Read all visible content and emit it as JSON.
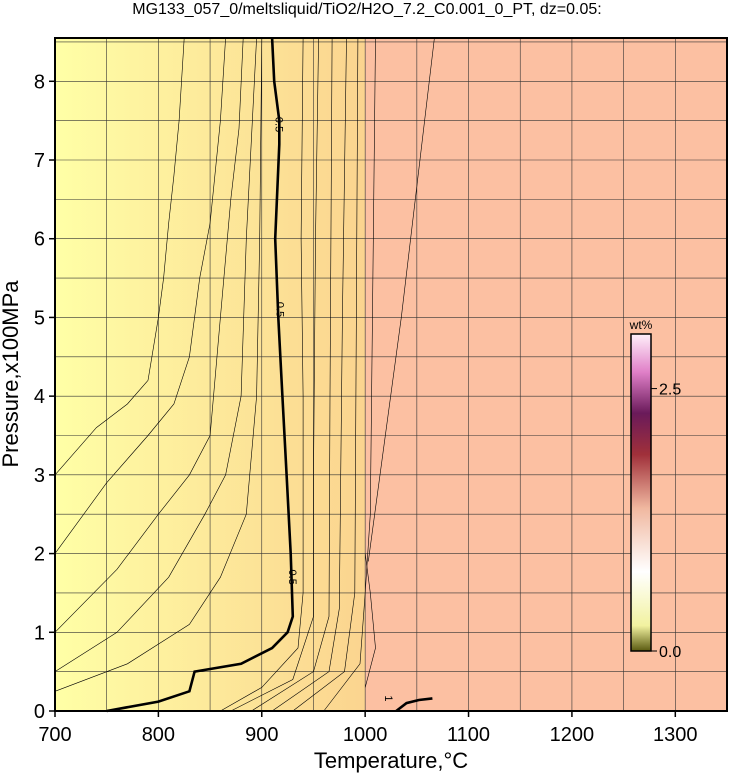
{
  "chart_data": {
    "type": "contour",
    "title": "MG133_057_0/meltsliquid/TiO2/H2O_7.2_C0.001_0_PT, dz=0.05:",
    "x_label": "Temperature,°C",
    "y_label": "Pressure,x100MPa",
    "xlim": [
      700,
      1350
    ],
    "ylim": [
      0,
      8.55
    ],
    "xticks": [
      700,
      800,
      900,
      1000,
      1100,
      1200,
      1300
    ],
    "yticks": [
      0,
      1,
      2,
      3,
      4,
      5,
      6,
      7,
      8
    ],
    "xgrid": [
      700,
      750,
      800,
      850,
      900,
      950,
      1000,
      1050,
      1100,
      1150,
      1200,
      1250,
      1300,
      1350
    ],
    "ygrid": [
      0,
      0.5,
      1,
      1.5,
      2,
      2.5,
      3,
      3.5,
      4,
      4.5,
      5,
      5.5,
      6,
      6.5,
      7,
      7.5,
      8,
      8.5
    ],
    "grid": true,
    "colorbar": {
      "label": "wt%",
      "clim": [
        0,
        3.02
      ],
      "ticks": [
        {
          "value": 0,
          "label": "0.0"
        },
        {
          "value": 2.5,
          "label": "2.5"
        }
      ]
    },
    "contours": [
      {
        "level": 0.5,
        "bold": true,
        "x": [
          750,
          800,
          830,
          835,
          880,
          910,
          925,
          930,
          928,
          924,
          920,
          916,
          913,
          917,
          917,
          912,
          910
        ],
        "y": [
          0,
          0.12,
          0.25,
          0.5,
          0.6,
          0.8,
          1.0,
          1.2,
          2.0,
          3.0,
          4.0,
          5.0,
          6.0,
          7.2,
          7.5,
          8.0,
          8.55
        ],
        "labels": [
          {
            "x": 917,
            "y": 5.1
          },
          {
            "x": 929,
            "y": 1.7
          },
          {
            "x": 916,
            "y": 7.45
          }
        ]
      },
      {
        "level": 1,
        "bold": true,
        "x": [
          1030,
          1040,
          1052,
          1065
        ],
        "y": [
          0,
          0.1,
          0.14,
          0.16
        ],
        "labels": [
          {
            "x": 1022,
            "y": 0.16
          }
        ]
      },
      {
        "x": [
          700,
          740,
          770,
          790,
          800,
          805,
          810,
          815,
          820,
          825
        ],
        "y": [
          3.0,
          3.6,
          3.9,
          4.2,
          5.0,
          5.5,
          6.2,
          6.8,
          7.5,
          8.55
        ]
      },
      {
        "x": [
          700,
          750,
          790,
          815,
          830,
          840,
          850,
          860,
          865
        ],
        "y": [
          2.0,
          2.9,
          3.5,
          3.9,
          4.5,
          5.5,
          6.2,
          7.5,
          8.55
        ]
      },
      {
        "x": [
          700,
          760,
          800,
          830,
          850,
          860,
          870,
          878,
          882
        ],
        "y": [
          1.0,
          1.8,
          2.5,
          3.0,
          3.5,
          5.0,
          6.5,
          7.4,
          8.55
        ]
      },
      {
        "x": [
          700,
          760,
          810,
          845,
          865,
          880,
          885,
          895
        ],
        "y": [
          0.5,
          1.0,
          1.7,
          2.5,
          3.0,
          4.0,
          6.0,
          8.55
        ]
      },
      {
        "x": [
          700,
          770,
          830,
          860,
          885,
          895,
          898,
          900
        ],
        "y": [
          0.25,
          0.6,
          1.1,
          1.7,
          2.5,
          4.0,
          6.0,
          8.55
        ]
      },
      {
        "x": [
          860,
          900,
          935,
          940,
          940,
          938,
          940
        ],
        "y": [
          0,
          0.3,
          0.8,
          1.5,
          4.0,
          6.0,
          8.55
        ]
      },
      {
        "x": [
          870,
          930,
          950,
          950,
          952,
          955
        ],
        "y": [
          0,
          0.4,
          1.2,
          3.0,
          6.0,
          8.55
        ]
      },
      {
        "x": [
          890,
          950,
          965,
          966,
          968
        ],
        "y": [
          0,
          0.5,
          1.2,
          4.0,
          8.55
        ]
      },
      {
        "x": [
          910,
          965,
          975,
          978,
          982
        ],
        "y": [
          0,
          0.5,
          1.3,
          5.0,
          8.55
        ]
      },
      {
        "x": [
          930,
          980,
          990,
          993
        ],
        "y": [
          0,
          0.5,
          1.5,
          8.55
        ]
      },
      {
        "x": [
          960,
          995,
          1000,
          1005,
          1010
        ],
        "y": [
          0,
          0.6,
          1.5,
          2.5,
          8.55
        ]
      },
      {
        "x": [
          1003,
          1035,
          1067
        ],
        "y": [
          1.9,
          5.0,
          8.55
        ]
      },
      {
        "x": [
          1000,
          1010,
          1005,
          1000
        ],
        "y": [
          0.3,
          0.8,
          1.5,
          2.0
        ]
      }
    ]
  }
}
